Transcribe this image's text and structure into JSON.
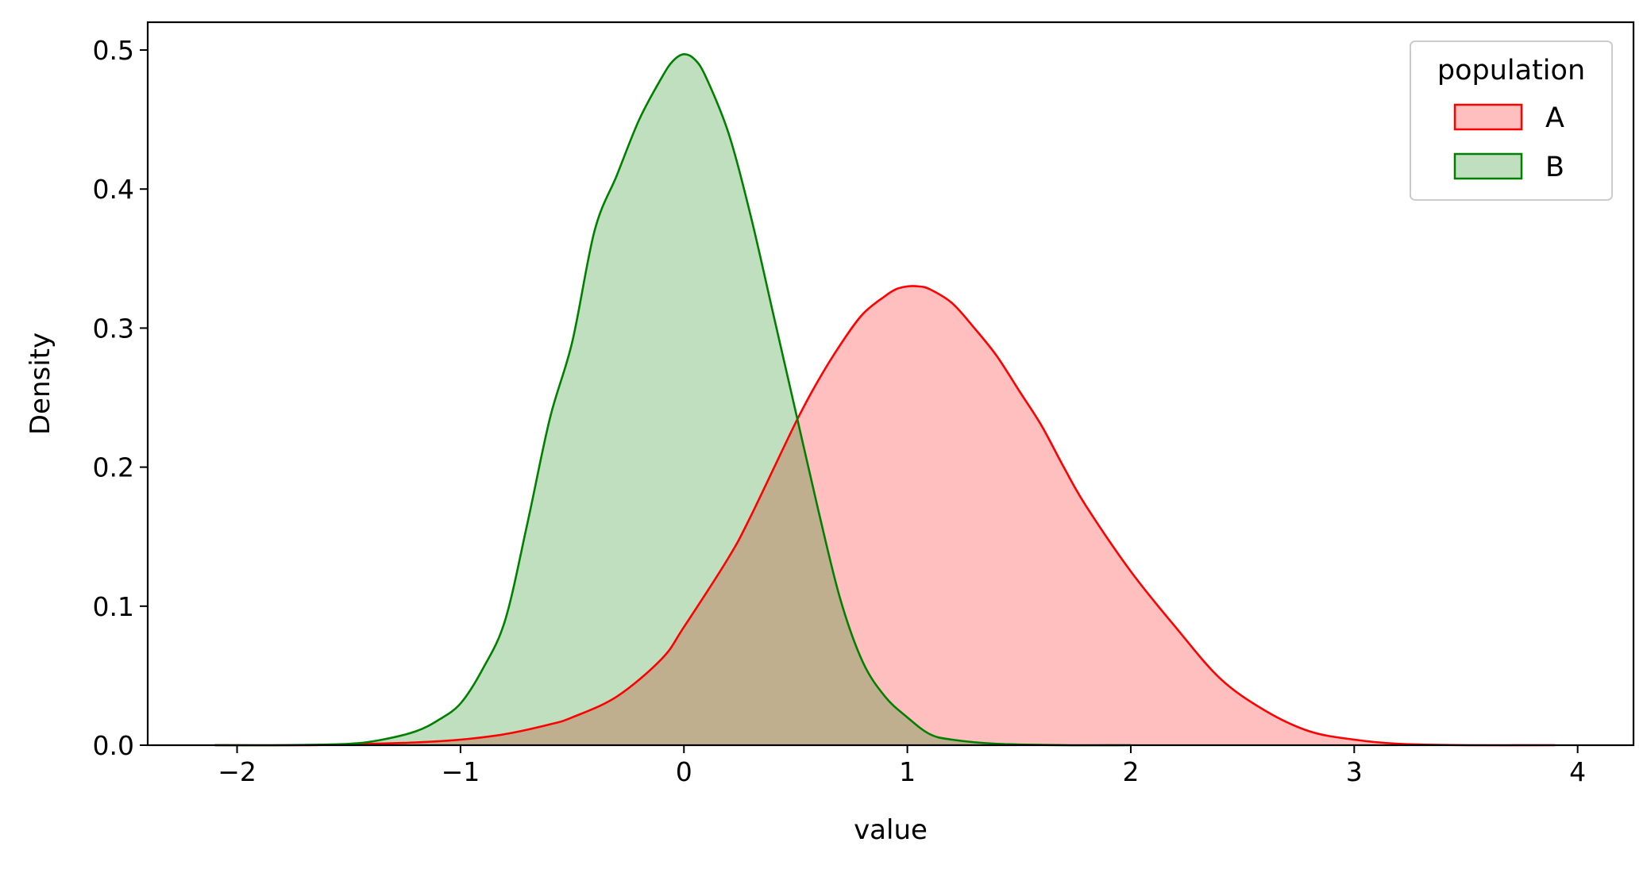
{
  "chart_data": {
    "type": "area",
    "title": "",
    "xlabel": "value",
    "ylabel": "Density",
    "xlim": [
      -2.4,
      4.25
    ],
    "ylim": [
      0,
      0.52
    ],
    "xticks": [
      -2,
      -1,
      0,
      1,
      2,
      3,
      4
    ],
    "yticks": [
      0.0,
      0.1,
      0.2,
      0.3,
      0.4,
      0.5
    ],
    "xtick_labels": [
      "−2",
      "−1",
      "0",
      "1",
      "2",
      "3",
      "4"
    ],
    "ytick_labels": [
      "0.0",
      "0.1",
      "0.2",
      "0.3",
      "0.4",
      "0.5"
    ],
    "grid": false,
    "legend": {
      "title": "population",
      "placement": "top-right",
      "entries": [
        "A",
        "B"
      ]
    },
    "series": [
      {
        "name": "A",
        "line_color": "#ff0000",
        "fill_color": "#ffbebe",
        "x": [
          -2.1,
          -1.7,
          -1.4,
          -1.2,
          -1.0,
          -0.8,
          -0.6,
          -0.5,
          -0.3,
          -0.1,
          0.0,
          0.2,
          0.3,
          0.5,
          0.6,
          0.7,
          0.8,
          0.9,
          0.95,
          1.0,
          1.05,
          1.1,
          1.2,
          1.3,
          1.4,
          1.5,
          1.6,
          1.7,
          1.8,
          2.0,
          2.2,
          2.4,
          2.6,
          2.8,
          3.0,
          3.2,
          3.5,
          3.9
        ],
        "y": [
          0.0,
          0.0,
          0.001,
          0.002,
          0.004,
          0.008,
          0.015,
          0.02,
          0.035,
          0.062,
          0.085,
          0.135,
          0.165,
          0.232,
          0.262,
          0.288,
          0.31,
          0.323,
          0.328,
          0.33,
          0.33,
          0.328,
          0.318,
          0.3,
          0.28,
          0.255,
          0.23,
          0.2,
          0.172,
          0.125,
          0.085,
          0.048,
          0.025,
          0.01,
          0.004,
          0.001,
          0.0,
          0.0
        ]
      },
      {
        "name": "B",
        "line_color": "#008000",
        "fill_color": "#bfe0bf",
        "x": [
          -2.1,
          -1.8,
          -1.5,
          -1.35,
          -1.2,
          -1.1,
          -1.0,
          -0.9,
          -0.8,
          -0.7,
          -0.6,
          -0.5,
          -0.4,
          -0.3,
          -0.2,
          -0.1,
          -0.05,
          0.0,
          0.05,
          0.1,
          0.2,
          0.3,
          0.4,
          0.5,
          0.6,
          0.7,
          0.8,
          0.9,
          1.0,
          1.1,
          1.2,
          1.4,
          1.7,
          2.0
        ],
        "y": [
          0.0,
          0.0,
          0.001,
          0.004,
          0.01,
          0.018,
          0.03,
          0.055,
          0.09,
          0.16,
          0.235,
          0.29,
          0.37,
          0.41,
          0.45,
          0.48,
          0.492,
          0.497,
          0.493,
          0.48,
          0.44,
          0.38,
          0.31,
          0.24,
          0.17,
          0.105,
          0.06,
          0.035,
          0.02,
          0.008,
          0.004,
          0.001,
          0.0,
          0.0
        ]
      }
    ]
  }
}
